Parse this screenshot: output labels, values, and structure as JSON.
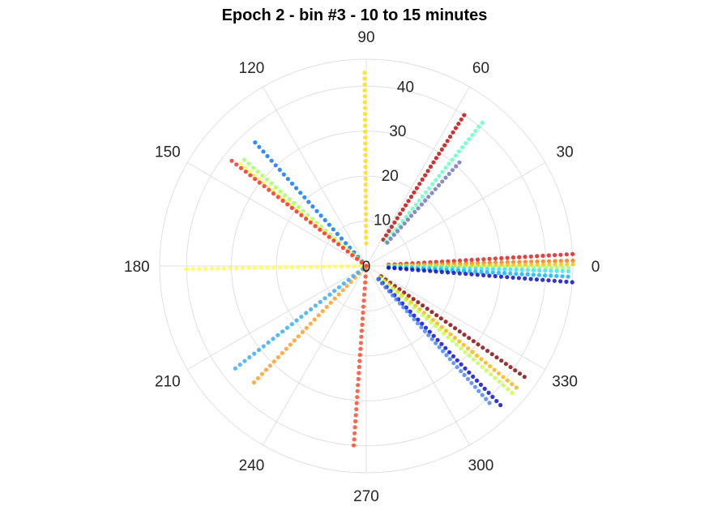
{
  "chart_data": {
    "type": "scatter",
    "coordinate_system": "polar",
    "title": "Epoch 2 - bin #3 - 10 to 15 minutes",
    "angle_ticks": [
      "0",
      "30",
      "60",
      "90",
      "120",
      "150",
      "180",
      "210",
      "240",
      "270",
      "300",
      "330"
    ],
    "angle_tick_values": [
      0,
      30,
      60,
      90,
      120,
      150,
      180,
      210,
      240,
      270,
      300,
      330
    ],
    "radial_ticks": [
      "0",
      "10",
      "20",
      "30",
      "40"
    ],
    "radial_tick_values": [
      0,
      10,
      20,
      30,
      40
    ],
    "rlim": [
      0,
      46
    ],
    "grid": true,
    "legend": "none",
    "series": [
      {
        "angle": 90.5,
        "r_start": 5,
        "r_end": 43,
        "color": "#ffdd00",
        "dots": 30
      },
      {
        "angle": 57,
        "r_start": 7,
        "r_end": 40,
        "color": "#c00000",
        "dots": 30
      },
      {
        "angle": 51,
        "r_start": 7,
        "r_end": 41,
        "color": "#60ffc0",
        "dots": 30
      },
      {
        "angle": 48,
        "r_start": 7,
        "r_end": 31,
        "color": "#7070b8",
        "dots": 22
      },
      {
        "angle": 3.3,
        "r_start": 5,
        "r_end": 46,
        "color": "#e01010",
        "dots": 32
      },
      {
        "angle": 1.5,
        "r_start": 5,
        "r_end": 46,
        "color": "#ff7000",
        "dots": 32
      },
      {
        "angle": 0.5,
        "r_start": 5,
        "r_end": 46,
        "color": "#ffc000",
        "dots": 32
      },
      {
        "angle": -0.5,
        "r_start": 5,
        "r_end": 45,
        "color": "#a0ff60",
        "dots": 32
      },
      {
        "angle": -1.5,
        "r_start": 5,
        "r_end": 45,
        "color": "#30e0ff",
        "dots": 32
      },
      {
        "angle": -3,
        "r_start": 5,
        "r_end": 45,
        "color": "#00b0ff",
        "dots": 32
      },
      {
        "angle": -4.5,
        "r_start": 5,
        "r_end": 46,
        "color": "#0000c0",
        "dots": 32
      },
      {
        "angle": -35,
        "r_start": 4,
        "r_end": 43,
        "color": "#800000",
        "dots": 32
      },
      {
        "angle": -39,
        "r_start": 4,
        "r_end": 43,
        "color": "#ffb000",
        "dots": 32
      },
      {
        "angle": -41,
        "r_start": 4,
        "r_end": 43,
        "color": "#c0ff40",
        "dots": 32
      },
      {
        "angle": -46,
        "r_start": 4,
        "r_end": 43,
        "color": "#0000e0",
        "dots": 32
      },
      {
        "angle": -48,
        "r_start": 4,
        "r_end": 41,
        "color": "#4080ff",
        "dots": 32
      },
      {
        "angle": 266,
        "r_start": 1,
        "r_end": 40,
        "color": "#ff4020",
        "dots": 30
      },
      {
        "angle": 226,
        "r_start": 1,
        "r_end": 36,
        "color": "#ff9a20",
        "dots": 28
      },
      {
        "angle": 218,
        "r_start": 1,
        "r_end": 37,
        "color": "#30a8ff",
        "dots": 28
      },
      {
        "angle": 181,
        "r_start": 0,
        "r_end": 40,
        "color": "#ffff40",
        "dots": 30
      },
      {
        "angle": 132,
        "r_start": 0,
        "r_end": 37,
        "color": "#0070ff",
        "dots": 28
      },
      {
        "angle": 139,
        "r_start": 0,
        "r_end": 36,
        "color": "#a0ff60",
        "dots": 28
      },
      {
        "angle": 141,
        "r_start": 0,
        "r_end": 36,
        "color": "#ffff40",
        "dots": 28
      },
      {
        "angle": 142,
        "r_start": 0,
        "r_end": 38,
        "color": "#ff2020",
        "dots": 30
      }
    ]
  }
}
